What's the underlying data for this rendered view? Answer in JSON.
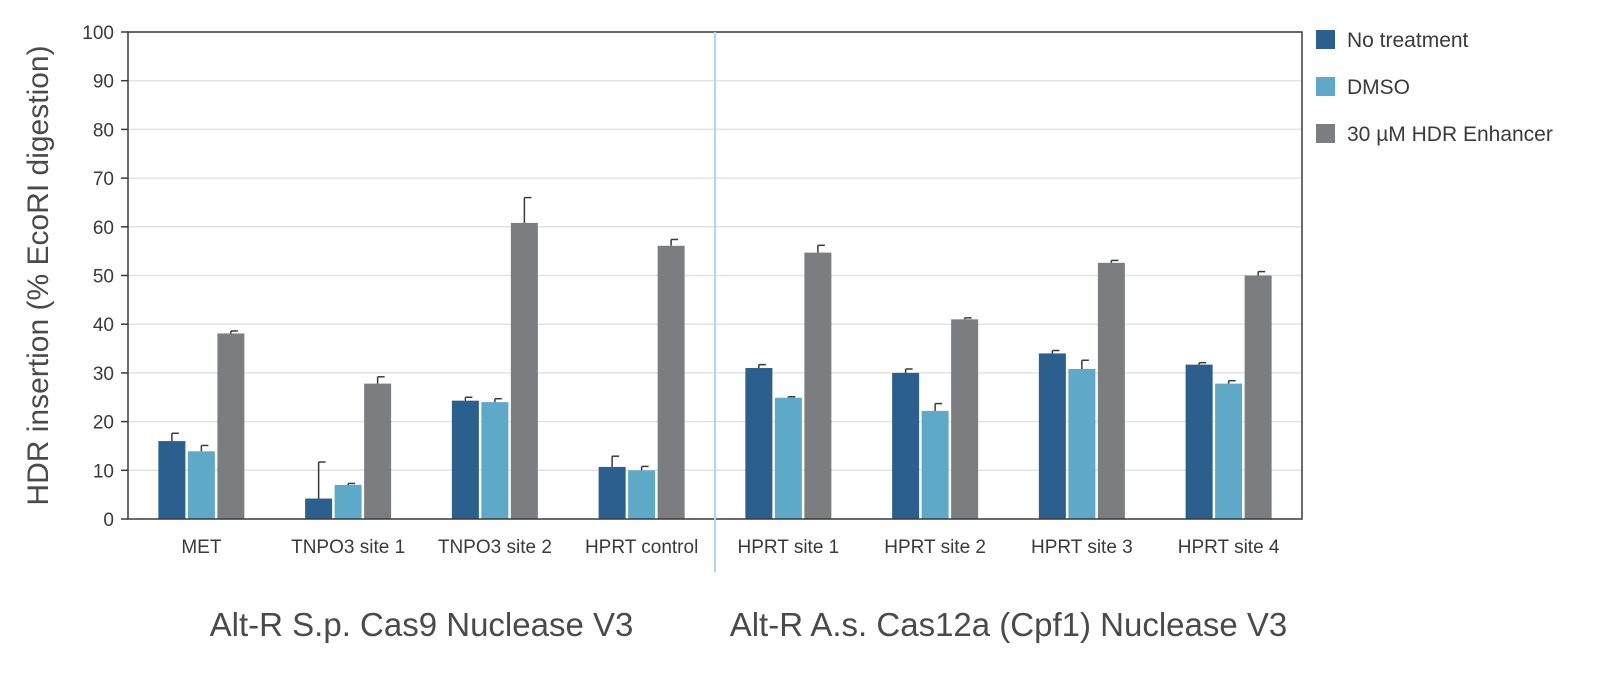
{
  "chart_data": {
    "type": "bar",
    "title": "",
    "ylabel": "HDR insertion (% EcoRI digestion)",
    "xlabel": "",
    "ylim": [
      0,
      100
    ],
    "yticks": [
      0,
      10,
      20,
      30,
      40,
      50,
      60,
      70,
      80,
      90,
      100
    ],
    "grid": true,
    "legend_position": "top-right outside",
    "categories": [
      "MET",
      "TNPO3 site 1",
      "TNPO3 site 2",
      "HPRT control",
      "HPRT site 1",
      "HPRT site 2",
      "HPRT site 3",
      "HPRT site 4"
    ],
    "groups": [
      {
        "label": "Alt-R S.p. Cas9 Nuclease V3",
        "categories": [
          "MET",
          "TNPO3 site 1",
          "TNPO3 site 2",
          "HPRT control"
        ]
      },
      {
        "label": "Alt-R A.s. Cas12a (Cpf1) Nuclease V3",
        "categories": [
          "HPRT site 1",
          "HPRT site 2",
          "HPRT site 3",
          "HPRT site 4"
        ]
      }
    ],
    "series": [
      {
        "name": "No treatment",
        "color": "#2a5f8e",
        "values": [
          16,
          4.2,
          24.3,
          10.7,
          31.0,
          30.0,
          34.0,
          31.7
        ],
        "errors": [
          1.6,
          7.5,
          0.7,
          2.2,
          0.7,
          0.8,
          0.6,
          0.4
        ]
      },
      {
        "name": "DMSO",
        "color": "#5fa9c8",
        "values": [
          13.9,
          7.0,
          24.0,
          10.0,
          24.9,
          22.2,
          30.8,
          27.8
        ],
        "errors": [
          1.2,
          0.3,
          0.7,
          0.8,
          0.2,
          1.5,
          1.8,
          0.6
        ]
      },
      {
        "name": "30 µM HDR Enhancer",
        "color": "#7c7d80",
        "values": [
          38.1,
          27.8,
          60.8,
          56.1,
          54.7,
          41.0,
          52.6,
          50.0
        ],
        "errors": [
          0.5,
          1.4,
          5.2,
          1.3,
          1.5,
          0.3,
          0.5,
          0.8
        ]
      }
    ]
  }
}
